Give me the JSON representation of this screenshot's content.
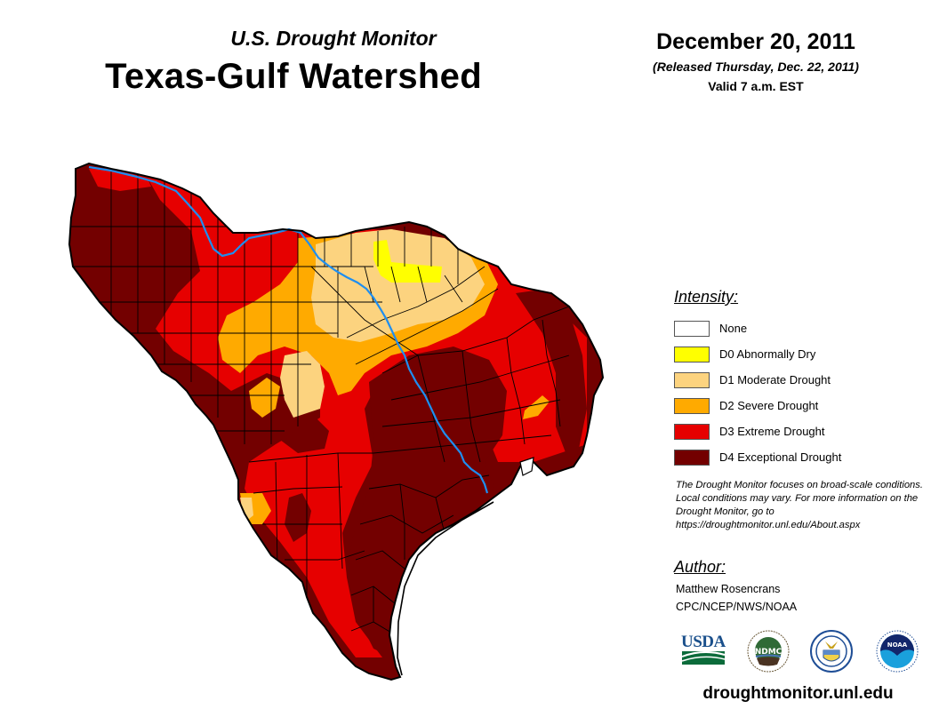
{
  "header": {
    "subtitle": "U.S. Drought Monitor",
    "title": "Texas-Gulf Watershed",
    "date": "December 20, 2011",
    "released": "(Released Thursday, Dec. 22, 2011)",
    "valid": "Valid 7 a.m. EST"
  },
  "map": {
    "region": "Texas-Gulf Watershed",
    "river_color": "#1e8ef0",
    "outline_color": "#000000"
  },
  "legend": {
    "heading": "Intensity:",
    "items": [
      {
        "label": "None",
        "color": "#ffffff"
      },
      {
        "label": "D0 Abnormally Dry",
        "color": "#ffff00"
      },
      {
        "label": "D1 Moderate Drought",
        "color": "#fcd37f"
      },
      {
        "label": "D2 Severe Drought",
        "color": "#ffaa00"
      },
      {
        "label": "D3 Extreme Drought",
        "color": "#e60000"
      },
      {
        "label": "D4 Exceptional Drought",
        "color": "#730000"
      }
    ]
  },
  "disclaimer": "The Drought Monitor focuses on broad-scale conditions. Local conditions may vary. For more information on the Drought Monitor, go to https://droughtmonitor.unl.edu/About.aspx",
  "author": {
    "heading": "Author:",
    "name": "Matthew Rosencrans",
    "org": "CPC/NCEP/NWS/NOAA"
  },
  "logos": {
    "usda": "USDA",
    "ndmc": "NDMC",
    "commerce": "Department of Commerce",
    "noaa": "NOAA"
  },
  "footer": {
    "site": "droughtmonitor.unl.edu"
  }
}
